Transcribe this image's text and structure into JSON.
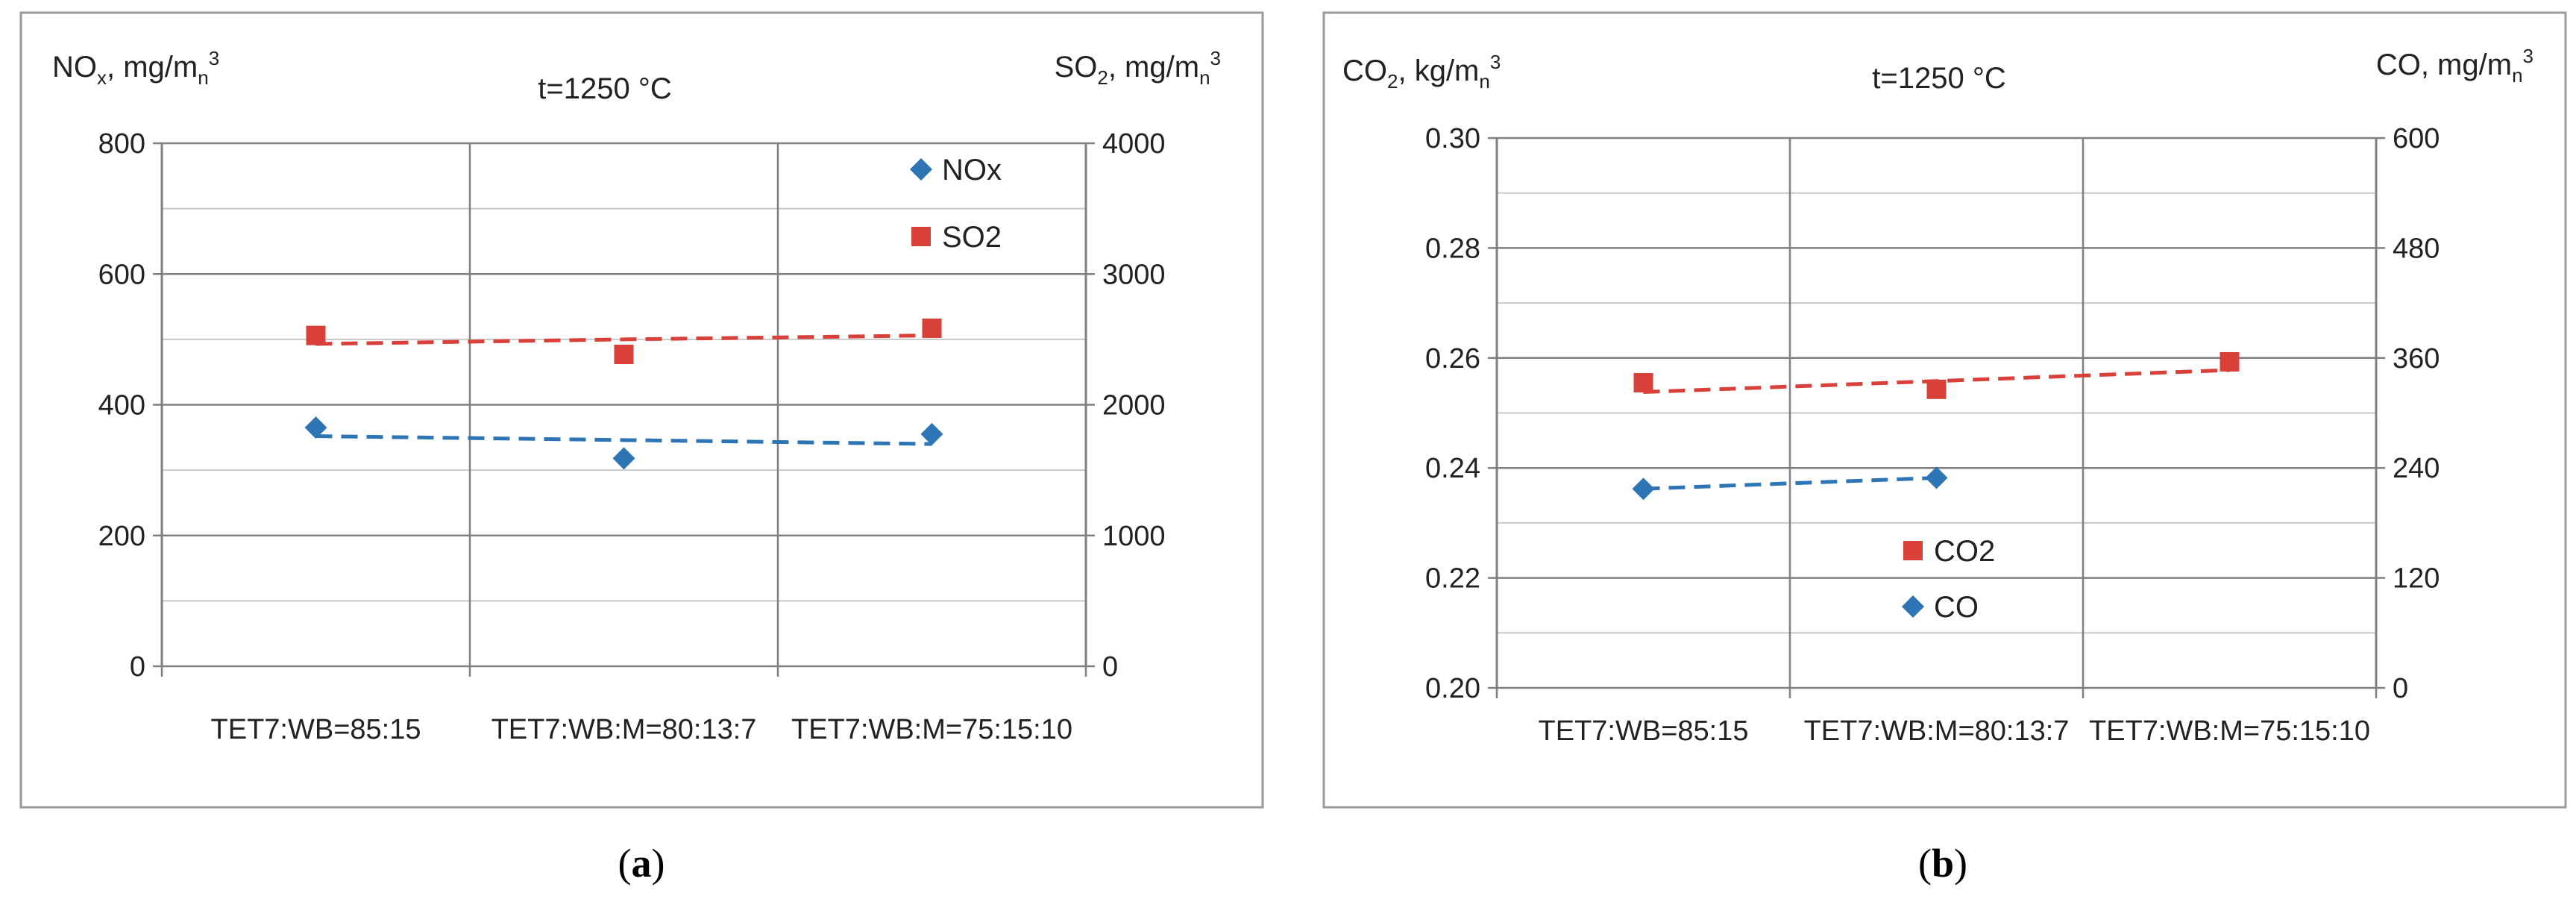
{
  "chart_data": [
    {
      "panel": "a",
      "type": "scatter",
      "title": "t=1250 °C",
      "caption_label": "a",
      "ylabel_left": {
        "base": "NO",
        "sub1": "x",
        "mid": ", mg/m",
        "sub2": "n",
        "sup": "3"
      },
      "ylabel_right": {
        "base": "SO",
        "sub1": "2",
        "mid": ", mg/m",
        "sub2": "n",
        "sup": "3"
      },
      "categories": [
        "TET7:WB=85:15",
        "TET7:WB:M=80:13:7",
        "TET7:WB:M=75:15:10"
      ],
      "left_axis": {
        "min": 0,
        "max": 800,
        "ticks": [
          "0",
          "200",
          "400",
          "600",
          "800"
        ]
      },
      "right_axis": {
        "min": 0,
        "max": 4000,
        "ticks": [
          "0",
          "1000",
          "2000",
          "3000",
          "4000"
        ]
      },
      "gridlines_left": [
        0,
        100,
        200,
        300,
        400,
        500,
        600,
        700,
        800
      ],
      "legend_position": "top-right",
      "series": [
        {
          "name": "NOx",
          "axis": "left",
          "marker": "diamond",
          "color": "#2e75b6",
          "values": [
            365,
            318,
            355
          ],
          "trend": [
            352,
            346,
            340
          ]
        },
        {
          "name": "SO2",
          "axis": "right",
          "marker": "square",
          "color": "#d9403a",
          "values": [
            2530,
            2385,
            2585
          ],
          "trend": [
            2465,
            2500,
            2530
          ]
        }
      ]
    },
    {
      "panel": "b",
      "type": "scatter",
      "title": "t=1250 °C",
      "caption_label": "b",
      "ylabel_left": {
        "base": "CO",
        "sub1": "2",
        "mid": ", kg/m",
        "sub2": "n",
        "sup": "3"
      },
      "ylabel_right": {
        "base": "CO",
        "sub1": "",
        "mid": ", mg/m",
        "sub2": "n",
        "sup": "3"
      },
      "categories": [
        "TET7:WB=85:15",
        "TET7:WB:M=80:13:7",
        "TET7:WB:M=75:15:10"
      ],
      "left_axis": {
        "min": 0.2,
        "max": 0.3,
        "ticks": [
          "0.20",
          "0.22",
          "0.24",
          "0.26",
          "0.28",
          "0.30"
        ]
      },
      "right_axis": {
        "min": 0,
        "max": 600,
        "ticks": [
          "0",
          "120",
          "240",
          "360",
          "480",
          "600"
        ]
      },
      "gridlines_left": [
        0.2,
        0.21,
        0.22,
        0.23,
        0.24,
        0.25,
        0.26,
        0.27,
        0.28,
        0.29,
        0.3
      ],
      "legend_position": "center",
      "series": [
        {
          "name": "CO2",
          "axis": "left",
          "marker": "square",
          "color": "#d9403a",
          "values": [
            0.2555,
            0.2543,
            0.2593
          ],
          "trend": [
            0.2538,
            0.2558,
            0.2578
          ]
        },
        {
          "name": "CO",
          "axis": "left",
          "marker": "diamond",
          "color": "#2e75b6",
          "values": [
            0.2362,
            0.2382,
            null
          ],
          "trend": [
            0.2362,
            0.2382,
            null
          ]
        }
      ]
    }
  ]
}
